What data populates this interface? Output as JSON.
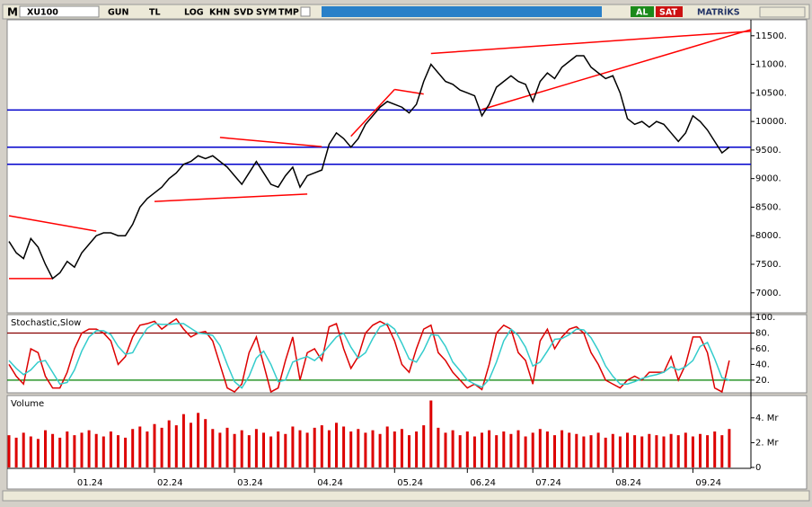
{
  "toolbar": {
    "logo": "M",
    "symbol": "XU100",
    "period": "GUN",
    "currency": "TL",
    "buttons": [
      "LOG",
      "KHN",
      "SVD",
      "SYM",
      "TMP"
    ],
    "buy": "AL",
    "sell": "SAT",
    "brand": "MATRİKS"
  },
  "chart_data": [
    {
      "type": "line",
      "series": [
        {
          "color": "#000000",
          "values": [
            7900,
            7700,
            7600,
            7950,
            7800,
            7500,
            7250,
            7350,
            7550,
            7450,
            7700,
            7850,
            8000,
            8050,
            8050,
            8000,
            8000,
            8200,
            8500,
            8650,
            8750,
            8850,
            9000,
            9100,
            9250,
            9300,
            9400,
            9350,
            9400,
            9300,
            9200,
            9050,
            8900,
            9100,
            9300,
            9100,
            8900,
            8850,
            9050,
            9200,
            8850,
            9050,
            9100,
            9150,
            9600,
            9800,
            9700,
            9550,
            9700,
            9950,
            10100,
            10250,
            10350,
            10300,
            10250,
            10150,
            10300,
            10700,
            11000,
            10850,
            10700,
            10650,
            10550,
            10500,
            10450,
            10100,
            10300,
            10600,
            10700,
            10800,
            10700,
            10650,
            10350,
            10700,
            10850,
            10750,
            10950,
            11050,
            11150,
            11150,
            10950,
            10850,
            10750,
            10800,
            10500,
            10050,
            9950,
            10000,
            9900,
            10000,
            9950,
            9800,
            9650,
            9800,
            10100,
            10000,
            9850,
            9650,
            9450,
            9550
          ]
        }
      ],
      "hlines": [
        10200,
        9550,
        9250
      ],
      "hline_color": "#0000cc",
      "trendlines": [
        {
          "x": [
            0,
            12
          ],
          "y": [
            8350,
            8080
          ]
        },
        {
          "x": [
            0,
            6
          ],
          "y": [
            7250,
            7250
          ]
        },
        {
          "x": [
            20,
            41
          ],
          "y": [
            8600,
            8730
          ]
        },
        {
          "x": [
            29,
            43
          ],
          "y": [
            9720,
            9560
          ]
        },
        {
          "x": [
            47,
            53
          ],
          "y": [
            9740,
            10560
          ]
        },
        {
          "x": [
            53,
            57
          ],
          "y": [
            10560,
            10480
          ]
        },
        {
          "x": [
            58,
            102
          ],
          "y": [
            11190,
            11580
          ]
        },
        {
          "x": [
            65,
            102
          ],
          "y": [
            10210,
            11610
          ]
        }
      ],
      "trendline_color": "#ff0000",
      "ylim": [
        6650,
        11780
      ],
      "yticks": [
        {
          "value": 7000,
          "label": "7000."
        },
        {
          "value": 7500,
          "label": "7500."
        },
        {
          "value": 8000,
          "label": "8000."
        },
        {
          "value": 8500,
          "label": "8500."
        },
        {
          "value": 9000,
          "label": "9000."
        },
        {
          "value": 9500,
          "label": "9500."
        },
        {
          "value": 10000,
          "label": "10000."
        },
        {
          "value": 10500,
          "label": "10500."
        },
        {
          "value": 11000,
          "label": "11000."
        },
        {
          "value": 11500,
          "label": "11500."
        }
      ]
    },
    {
      "type": "line",
      "title": "Stochastic,Slow",
      "series": [
        {
          "color": "#dd0000",
          "values": [
            40,
            25,
            15,
            60,
            55,
            25,
            10,
            10,
            30,
            60,
            80,
            85,
            85,
            80,
            70,
            40,
            50,
            75,
            90,
            92,
            95,
            85,
            92,
            98,
            85,
            75,
            80,
            82,
            70,
            40,
            10,
            5,
            15,
            55,
            75,
            40,
            5,
            10,
            45,
            75,
            20,
            55,
            60,
            45,
            88,
            92,
            60,
            35,
            50,
            80,
            90,
            95,
            90,
            70,
            40,
            30,
            60,
            85,
            90,
            55,
            45,
            30,
            20,
            10,
            15,
            8,
            40,
            80,
            90,
            85,
            55,
            45,
            15,
            70,
            85,
            60,
            75,
            85,
            88,
            80,
            55,
            40,
            20,
            15,
            10,
            20,
            25,
            20,
            30,
            30,
            30,
            50,
            20,
            40,
            75,
            75,
            55,
            10,
            5,
            45
          ]
        },
        {
          "color": "#33cccc",
          "values": [
            45,
            35,
            27,
            33,
            43,
            45,
            30,
            15,
            17,
            33,
            57,
            75,
            83,
            83,
            78,
            63,
            53,
            55,
            72,
            86,
            92,
            91,
            91,
            92,
            92,
            86,
            80,
            79,
            77,
            64,
            40,
            18,
            10,
            25,
            48,
            57,
            40,
            18,
            20,
            43,
            47,
            50,
            45,
            53,
            64,
            75,
            80,
            62,
            48,
            55,
            73,
            88,
            92,
            85,
            67,
            47,
            43,
            58,
            78,
            77,
            63,
            43,
            32,
            20,
            15,
            11,
            21,
            43,
            70,
            85,
            77,
            62,
            38,
            43,
            57,
            72,
            73,
            78,
            85,
            84,
            74,
            58,
            38,
            25,
            15,
            15,
            18,
            22,
            25,
            27,
            30,
            37,
            33,
            37,
            45,
            63,
            68,
            47,
            23,
            20
          ]
        }
      ],
      "levels": [
        {
          "value": 80,
          "color": "#880000"
        },
        {
          "value": 20,
          "color": "#008000"
        }
      ],
      "ylim": [
        3.8,
        103.5
      ],
      "yticks": [
        {
          "value": 20,
          "label": "20."
        },
        {
          "value": 40,
          "label": "40."
        },
        {
          "value": 60,
          "label": "60."
        },
        {
          "value": 80,
          "label": "80."
        },
        {
          "value": 100,
          "label": "100."
        }
      ]
    },
    {
      "type": "bar",
      "title": "Volume",
      "color": "#dd0000",
      "categories": [
        null,
        null,
        null,
        null,
        null,
        null,
        null,
        null,
        null,
        "01.24",
        null,
        null,
        null,
        null,
        null,
        null,
        null,
        null,
        null,
        null,
        "02.24",
        null,
        null,
        null,
        null,
        null,
        null,
        null,
        null,
        null,
        null,
        "03.24",
        null,
        null,
        null,
        null,
        null,
        null,
        null,
        null,
        null,
        null,
        "04.24",
        null,
        null,
        null,
        null,
        null,
        null,
        null,
        null,
        null,
        null,
        "05.24",
        null,
        null,
        null,
        null,
        null,
        null,
        null,
        null,
        null,
        "06.24",
        null,
        null,
        null,
        null,
        null,
        null,
        null,
        null,
        "07.24",
        null,
        null,
        null,
        null,
        null,
        null,
        null,
        null,
        null,
        null,
        "08.24",
        null,
        null,
        null,
        null,
        null,
        null,
        null,
        null,
        null,
        null,
        "09.24",
        null,
        null,
        null,
        null,
        null
      ],
      "values": [
        2.6,
        2.4,
        2.8,
        2.5,
        2.3,
        3.0,
        2.7,
        2.4,
        2.9,
        2.6,
        2.8,
        3.0,
        2.7,
        2.5,
        2.9,
        2.6,
        2.4,
        3.1,
        3.3,
        2.9,
        3.5,
        3.2,
        3.8,
        3.4,
        4.3,
        3.6,
        4.4,
        3.9,
        3.1,
        2.8,
        3.2,
        2.7,
        3.0,
        2.6,
        3.1,
        2.8,
        2.5,
        2.9,
        2.7,
        3.3,
        3.0,
        2.8,
        3.2,
        3.4,
        3.0,
        3.6,
        3.3,
        2.9,
        3.1,
        2.8,
        3.0,
        2.7,
        3.3,
        2.9,
        3.1,
        2.6,
        2.9,
        3.4,
        5.4,
        3.2,
        2.8,
        3.0,
        2.6,
        2.9,
        2.5,
        2.8,
        3.0,
        2.6,
        2.9,
        2.7,
        3.0,
        2.5,
        2.8,
        3.1,
        2.9,
        2.6,
        3.0,
        2.8,
        2.7,
        2.5,
        2.6,
        2.8,
        2.4,
        2.7,
        2.5,
        2.8,
        2.6,
        2.5,
        2.7,
        2.6,
        2.5,
        2.7,
        2.6,
        2.8,
        2.5,
        2.7,
        2.6,
        2.9,
        2.6,
        3.1
      ],
      "ylim": [
        0,
        5.8
      ],
      "yticks": [
        0,
        {
          "value": 2,
          "label": "2. Mr"
        },
        {
          "value": 4,
          "label": "4. Mr"
        }
      ]
    }
  ]
}
